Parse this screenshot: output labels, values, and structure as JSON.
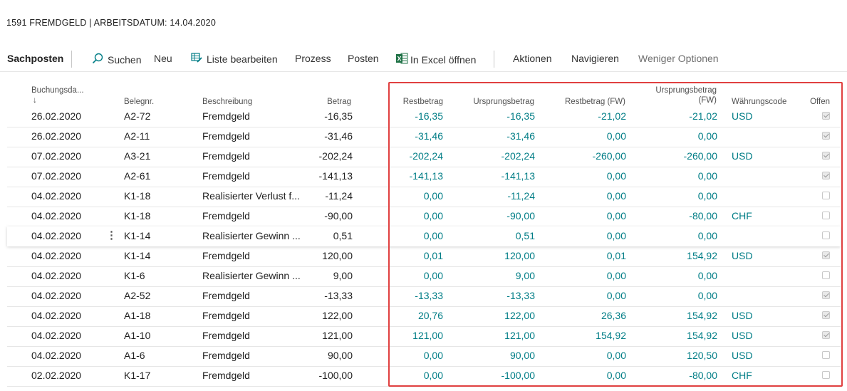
{
  "page": {
    "title": "1591 FREMDGELD | ARBEITSDATUM: 14.04.2020"
  },
  "toolbar": {
    "tab_label": "Sachposten",
    "search_label": "Suchen",
    "new_label": "Neu",
    "edit_list_label": "Liste bearbeiten",
    "process_label": "Prozess",
    "entries_label": "Posten",
    "excel_label": "In Excel öffnen",
    "actions_label": "Aktionen",
    "navigate_label": "Navigieren",
    "fewer_options_label": "Weniger Optionen"
  },
  "columns": {
    "date": "Buchungsda...",
    "date_sort": "↓",
    "docno": "Belegnr.",
    "desc": "Beschreibung",
    "amount": "Betrag",
    "remaining": "Restbetrag",
    "original": "Ursprungsbetrag",
    "remaining_fw": "Restbetrag (FW)",
    "original_fw_line1": "Ursprungsbetrag",
    "original_fw_line2": "(FW)",
    "currency": "Währungscode",
    "open": "Offen"
  },
  "rows": [
    {
      "date": "26.02.2020",
      "docno": "A2-72",
      "desc": "Fremdgeld",
      "amount": "-16,35",
      "remaining": "-16,35",
      "original": "-16,35",
      "remaining_fw": "-21,02",
      "original_fw": "-21,02",
      "currency": "USD",
      "open": true
    },
    {
      "date": "26.02.2020",
      "docno": "A2-11",
      "desc": "Fremdgeld",
      "amount": "-31,46",
      "remaining": "-31,46",
      "original": "-31,46",
      "remaining_fw": "0,00",
      "original_fw": "0,00",
      "currency": "",
      "open": true
    },
    {
      "date": "07.02.2020",
      "docno": "A3-21",
      "desc": "Fremdgeld",
      "amount": "-202,24",
      "remaining": "-202,24",
      "original": "-202,24",
      "remaining_fw": "-260,00",
      "original_fw": "-260,00",
      "currency": "USD",
      "open": true
    },
    {
      "date": "07.02.2020",
      "docno": "A2-61",
      "desc": "Fremdgeld",
      "amount": "-141,13",
      "remaining": "-141,13",
      "original": "-141,13",
      "remaining_fw": "0,00",
      "original_fw": "0,00",
      "currency": "",
      "open": true
    },
    {
      "date": "04.02.2020",
      "docno": "K1-18",
      "desc": "Realisierter Verlust f...",
      "amount": "-11,24",
      "remaining": "0,00",
      "original": "-11,24",
      "remaining_fw": "0,00",
      "original_fw": "0,00",
      "currency": "",
      "open": false
    },
    {
      "date": "04.02.2020",
      "docno": "K1-18",
      "desc": "Fremdgeld",
      "amount": "-90,00",
      "remaining": "0,00",
      "original": "-90,00",
      "remaining_fw": "0,00",
      "original_fw": "-80,00",
      "currency": "CHF",
      "open": false
    },
    {
      "date": "04.02.2020",
      "docno": "K1-14",
      "desc": "Realisierter Gewinn ...",
      "amount": "0,51",
      "remaining": "0,00",
      "original": "0,51",
      "remaining_fw": "0,00",
      "original_fw": "0,00",
      "currency": "",
      "open": false
    },
    {
      "date": "04.02.2020",
      "docno": "K1-14",
      "desc": "Fremdgeld",
      "amount": "120,00",
      "remaining": "0,01",
      "original": "120,00",
      "remaining_fw": "0,01",
      "original_fw": "154,92",
      "currency": "USD",
      "open": true
    },
    {
      "date": "04.02.2020",
      "docno": "K1-6",
      "desc": "Realisierter Gewinn ...",
      "amount": "9,00",
      "remaining": "0,00",
      "original": "9,00",
      "remaining_fw": "0,00",
      "original_fw": "0,00",
      "currency": "",
      "open": false
    },
    {
      "date": "04.02.2020",
      "docno": "A2-52",
      "desc": "Fremdgeld",
      "amount": "-13,33",
      "remaining": "-13,33",
      "original": "-13,33",
      "remaining_fw": "0,00",
      "original_fw": "0,00",
      "currency": "",
      "open": true
    },
    {
      "date": "04.02.2020",
      "docno": "A1-18",
      "desc": "Fremdgeld",
      "amount": "122,00",
      "remaining": "20,76",
      "original": "122,00",
      "remaining_fw": "26,36",
      "original_fw": "154,92",
      "currency": "USD",
      "open": true
    },
    {
      "date": "04.02.2020",
      "docno": "A1-10",
      "desc": "Fremdgeld",
      "amount": "121,00",
      "remaining": "121,00",
      "original": "121,00",
      "remaining_fw": "154,92",
      "original_fw": "154,92",
      "currency": "USD",
      "open": true
    },
    {
      "date": "04.02.2020",
      "docno": "A1-6",
      "desc": "Fremdgeld",
      "amount": "90,00",
      "remaining": "0,00",
      "original": "90,00",
      "remaining_fw": "0,00",
      "original_fw": "120,50",
      "currency": "USD",
      "open": false
    },
    {
      "date": "02.02.2020",
      "docno": "K1-17",
      "desc": "Fremdgeld",
      "amount": "-100,00",
      "remaining": "0,00",
      "original": "-100,00",
      "remaining_fw": "0,00",
      "original_fw": "-80,00",
      "currency": "CHF",
      "open": false
    }
  ],
  "row_menu": {
    "icon": "more-vertical-icon",
    "label": "⋮"
  },
  "colors": {
    "teal": "#007d86",
    "highlight": "#e04040"
  }
}
